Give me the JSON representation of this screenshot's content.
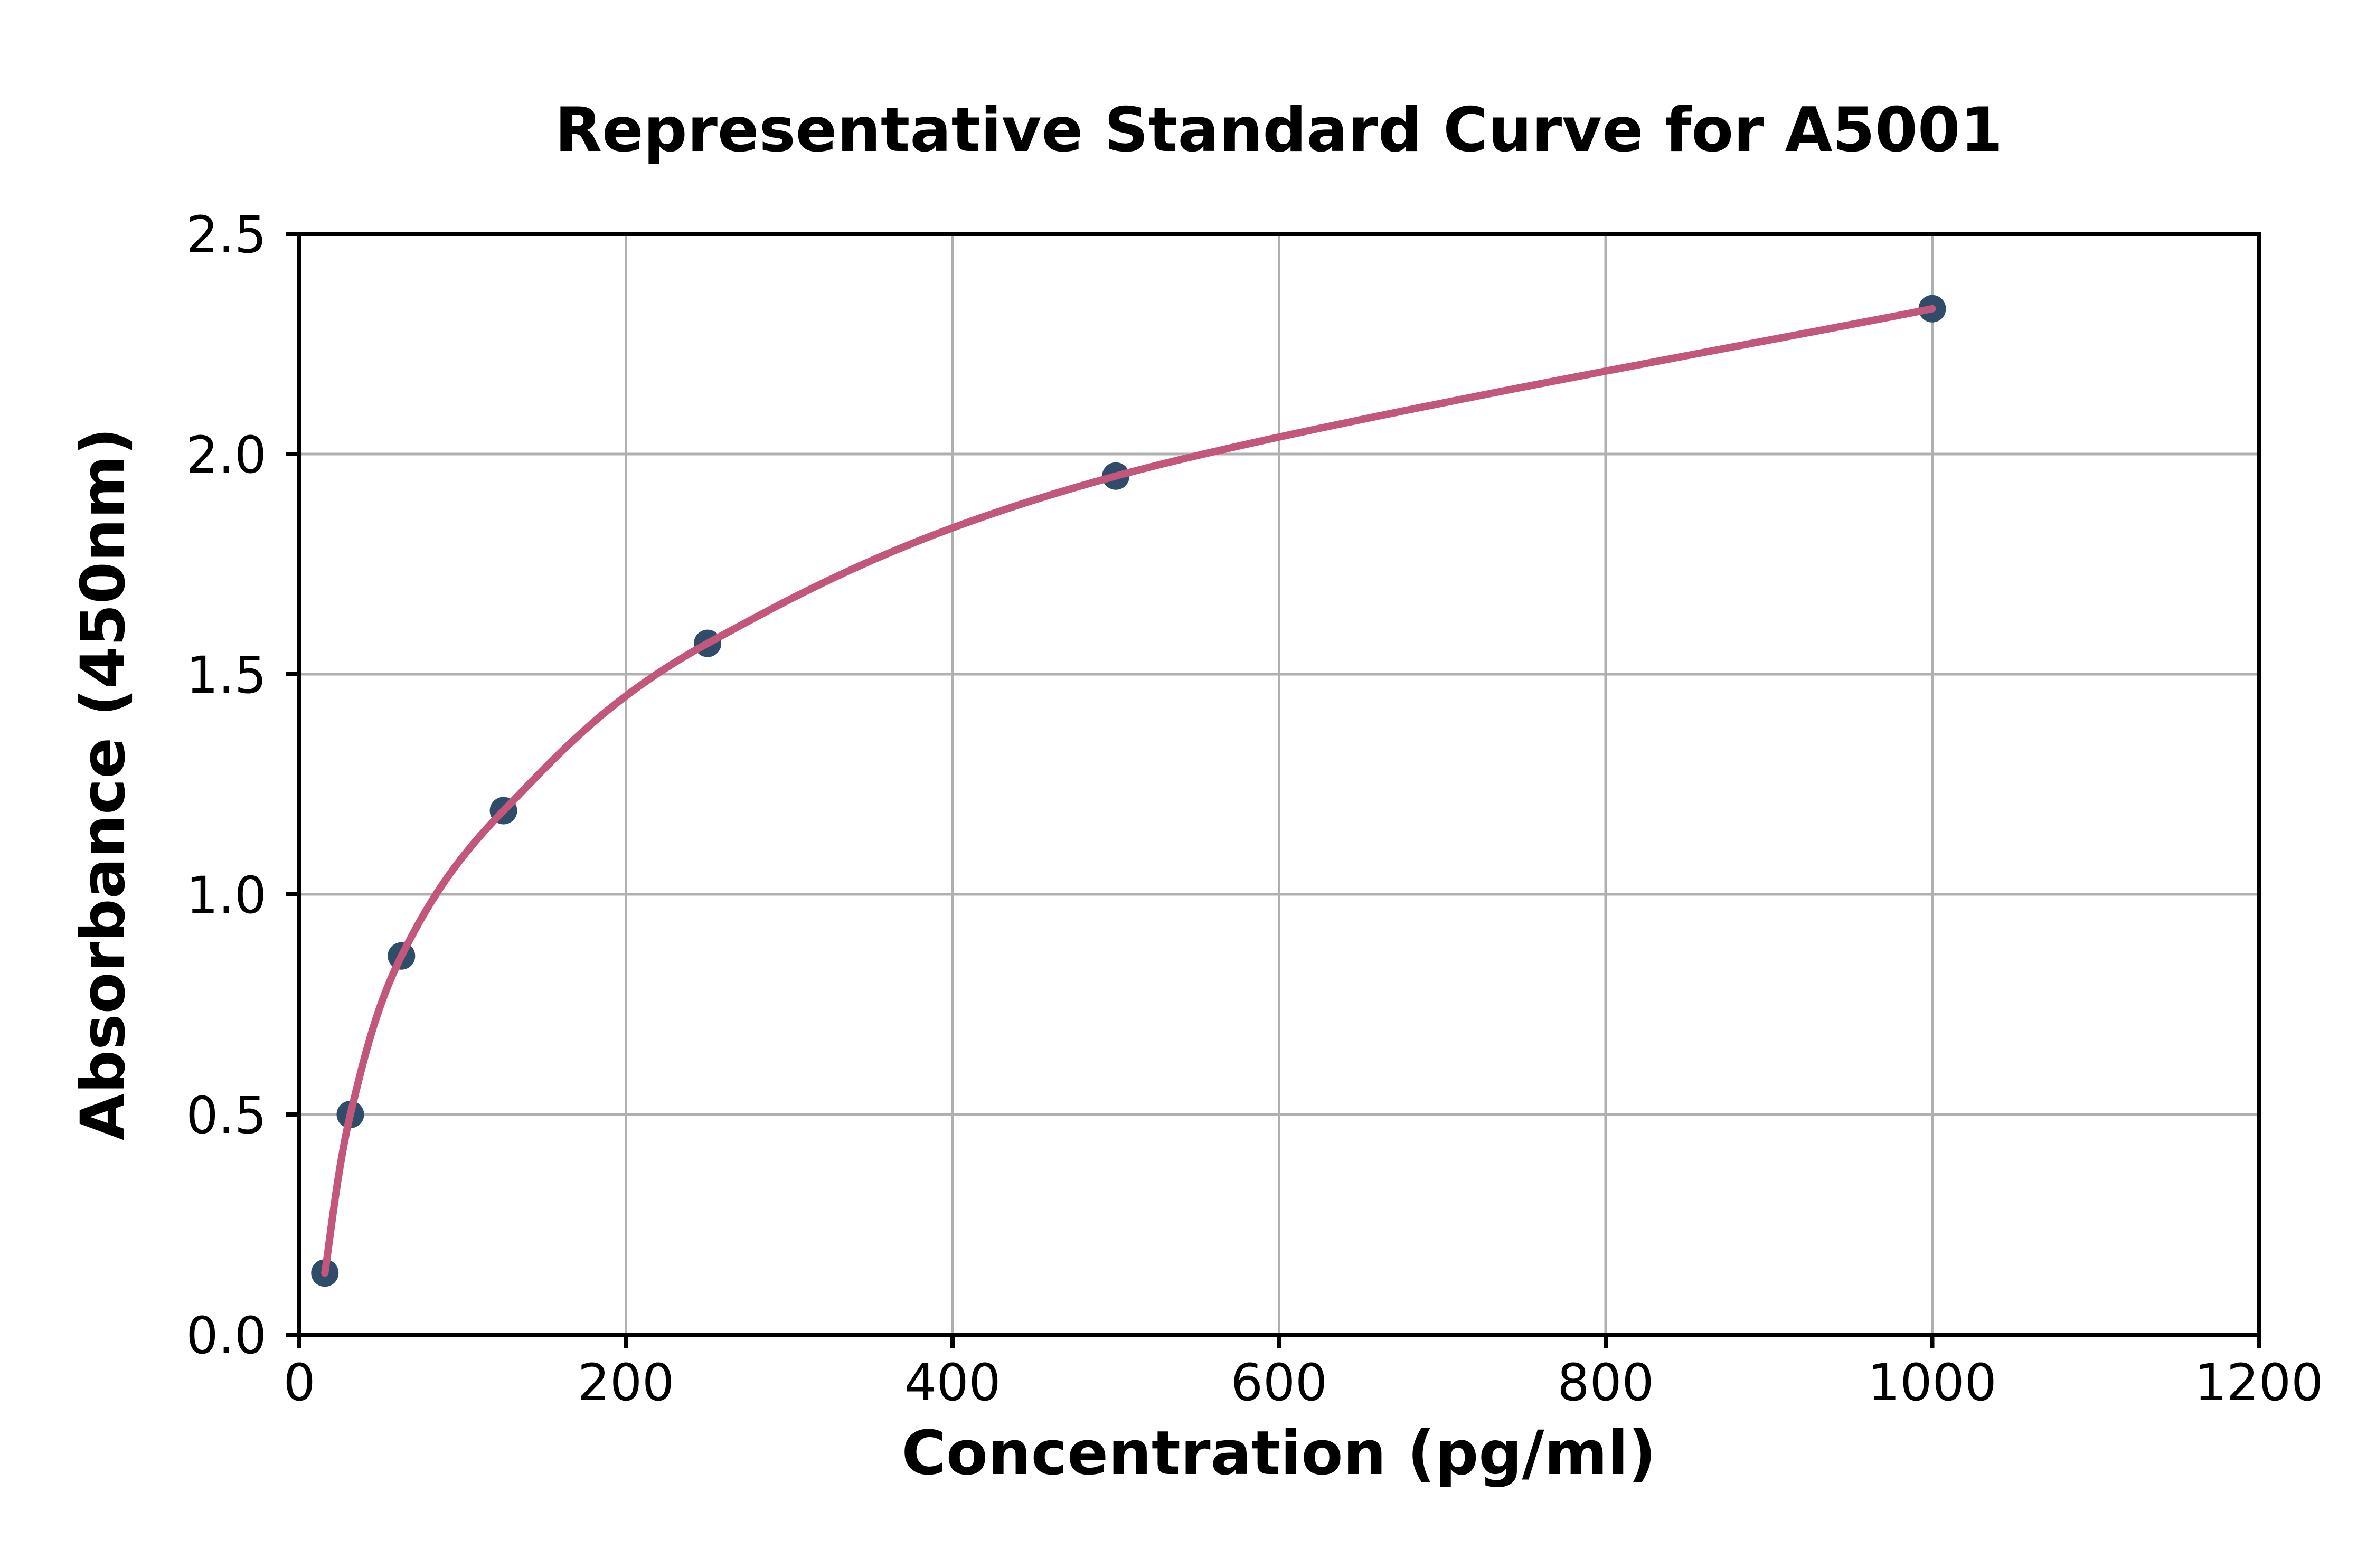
{
  "figure": {
    "title": "Representative Standard Curve for A5001",
    "background_color": "#ffffff"
  },
  "chart_data": {
    "type": "scatter",
    "title": "Representative Standard Curve for A5001",
    "xlabel": "Concentration (pg/ml)",
    "ylabel": "Absorbance (450nm)",
    "xlim": [
      0,
      1200
    ],
    "ylim": [
      0,
      2.5
    ],
    "x_ticks": [
      0,
      200,
      400,
      600,
      800,
      1000,
      1200
    ],
    "y_ticks": [
      0,
      0.5,
      1.0,
      1.5,
      2.0,
      2.5
    ],
    "x_tick_labels": [
      "0",
      "200",
      "400",
      "600",
      "800",
      "1000",
      "1200"
    ],
    "y_tick_labels": [
      "0.0",
      "0.5",
      "1.0",
      "1.5",
      "2.0",
      "2.5"
    ],
    "grid": true,
    "legend": "none",
    "series": [
      {
        "name": "standard-points",
        "type": "scatter",
        "x": [
          15.6,
          31.2,
          62.5,
          125,
          250,
          500,
          1000
        ],
        "y": [
          0.14,
          0.5,
          0.86,
          1.19,
          1.57,
          1.95,
          2.33
        ],
        "marker": "circle",
        "marker_color": "#2f4d68"
      },
      {
        "name": "fitted-curve",
        "type": "line",
        "follows": "standard-points",
        "color": "#c2567b"
      }
    ],
    "colors": {
      "grid": "#b0b0b0",
      "axes": "#000000",
      "curve": "#c2567b",
      "marker": "#2f4d68",
      "text": "#000000"
    }
  }
}
